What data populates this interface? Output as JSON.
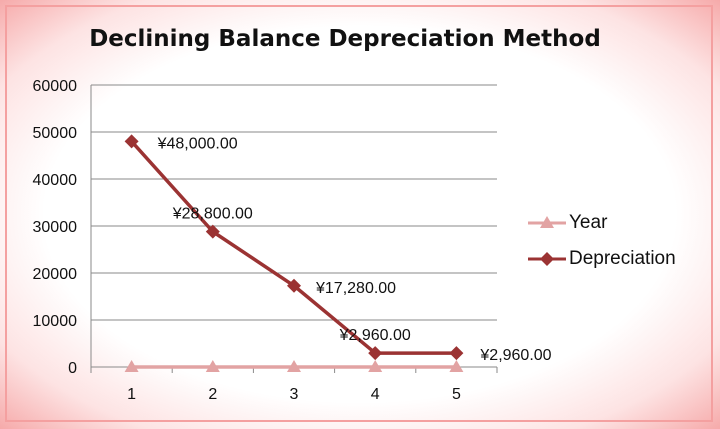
{
  "chart_data": {
    "type": "line",
    "title": "Declining Balance Depreciation Method",
    "categories": [
      "1",
      "2",
      "3",
      "4",
      "5"
    ],
    "ylim": [
      0,
      60000
    ],
    "yticks": [
      "0",
      "10000",
      "20000",
      "30000",
      "40000",
      "50000",
      "60000"
    ],
    "grid": true,
    "legend_position": "right",
    "series": [
      {
        "name": "Year",
        "values": [
          0,
          0,
          0,
          0,
          0
        ],
        "color": "#e2a3a3",
        "marker": "triangle",
        "labels": []
      },
      {
        "name": "Depreciation",
        "values": [
          48000,
          28800,
          17280,
          2960,
          2960
        ],
        "color": "#9b3333",
        "marker": "diamond",
        "labels": [
          "¥48,000.00",
          "¥28,800.00",
          "¥17,280.00",
          "¥2,960.00",
          "¥2,960.00"
        ]
      }
    ]
  }
}
